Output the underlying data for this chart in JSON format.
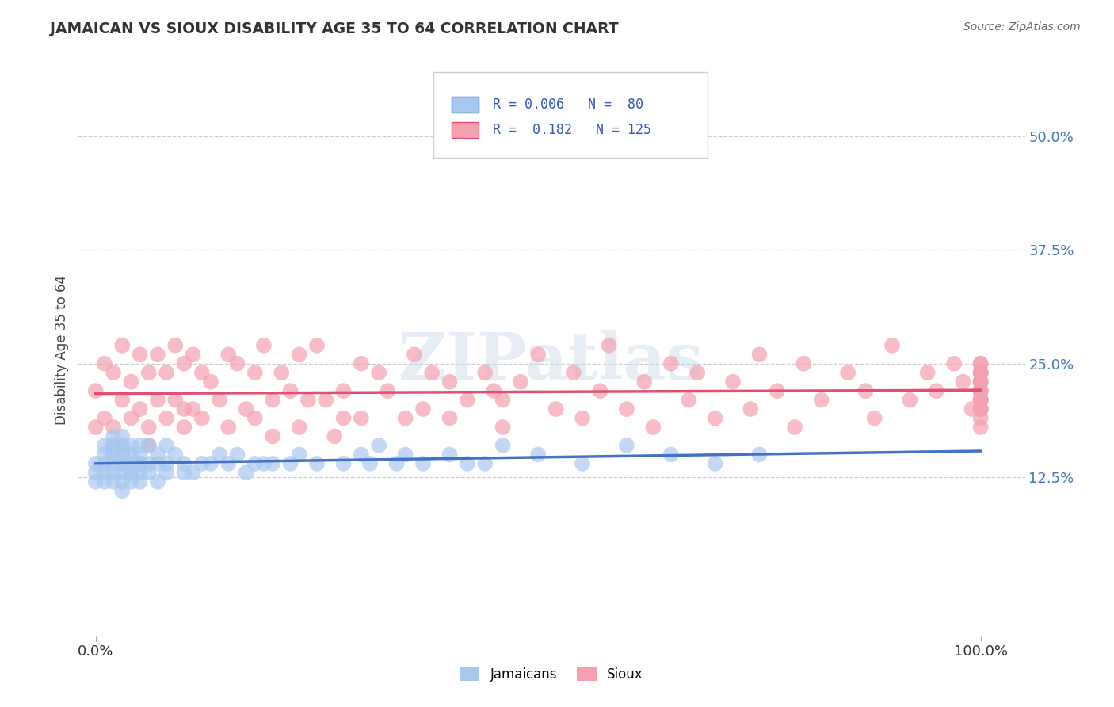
{
  "title": "JAMAICAN VS SIOUX DISABILITY AGE 35 TO 64 CORRELATION CHART",
  "source_text": "Source: ZipAtlas.com",
  "ylabel": "Disability Age 35 to 64",
  "xlim": [
    -2,
    105
  ],
  "ylim": [
    -5,
    58
  ],
  "ytick_positions": [
    12.5,
    25.0,
    37.5,
    50.0
  ],
  "ytick_labels": [
    "12.5%",
    "25.0%",
    "37.5%",
    "50.0%"
  ],
  "xtick_positions": [
    0,
    100
  ],
  "xtick_labels": [
    "0.0%",
    "100.0%"
  ],
  "legend_line1": "R = 0.006   N =  80",
  "legend_line2": "R =  0.182   N = 125",
  "color_jamaican": "#a8c8f0",
  "color_sioux": "#f5a0b0",
  "color_line_jamaican": "#4472c4",
  "color_line_sioux": "#e05070",
  "color_title": "#333333",
  "color_source": "#666666",
  "color_legend_text": "#3355bb",
  "background_color": "#ffffff",
  "grid_color": "#cccccc",
  "watermark_text": "ZIPatlas",
  "jamaican_x": [
    0,
    0,
    0,
    1,
    1,
    1,
    1,
    1,
    2,
    2,
    2,
    2,
    2,
    2,
    2,
    2,
    3,
    3,
    3,
    3,
    3,
    3,
    3,
    3,
    3,
    4,
    4,
    4,
    4,
    4,
    4,
    4,
    5,
    5,
    5,
    5,
    5,
    5,
    6,
    6,
    6,
    7,
    7,
    7,
    8,
    8,
    8,
    9,
    10,
    10,
    11,
    12,
    13,
    14,
    15,
    16,
    17,
    18,
    19,
    20,
    22,
    23,
    25,
    28,
    30,
    31,
    32,
    34,
    35,
    37,
    40,
    42,
    44,
    46,
    50,
    55,
    60,
    65,
    70,
    75
  ],
  "jamaican_y": [
    14,
    13,
    12,
    16,
    15,
    14,
    13,
    12,
    17,
    16,
    16,
    15,
    15,
    14,
    13,
    12,
    17,
    16,
    15,
    15,
    14,
    14,
    13,
    12,
    11,
    16,
    15,
    14,
    14,
    13,
    13,
    12,
    16,
    15,
    14,
    14,
    13,
    12,
    16,
    14,
    13,
    15,
    14,
    12,
    16,
    14,
    13,
    15,
    14,
    13,
    13,
    14,
    14,
    15,
    14,
    15,
    13,
    14,
    14,
    14,
    14,
    15,
    14,
    14,
    15,
    14,
    16,
    14,
    15,
    14,
    15,
    14,
    14,
    16,
    15,
    14,
    16,
    15,
    14,
    15
  ],
  "sioux_x": [
    0,
    0,
    1,
    1,
    2,
    2,
    3,
    3,
    3,
    4,
    4,
    5,
    5,
    6,
    6,
    6,
    7,
    7,
    8,
    8,
    9,
    9,
    10,
    10,
    10,
    11,
    11,
    12,
    12,
    13,
    14,
    15,
    15,
    16,
    17,
    18,
    18,
    19,
    20,
    20,
    21,
    22,
    23,
    23,
    24,
    25,
    26,
    27,
    28,
    28,
    30,
    30,
    32,
    33,
    35,
    36,
    37,
    38,
    40,
    40,
    42,
    44,
    45,
    46,
    46,
    48,
    50,
    52,
    54,
    55,
    57,
    58,
    60,
    62,
    63,
    65,
    67,
    68,
    70,
    72,
    74,
    75,
    77,
    79,
    80,
    82,
    85,
    87,
    88,
    90,
    92,
    94,
    95,
    97,
    98,
    99,
    100,
    100,
    100,
    100,
    100,
    100,
    100,
    100,
    100,
    100,
    100,
    100,
    100,
    100,
    100,
    100,
    100,
    100,
    100,
    100,
    100,
    100,
    100,
    100,
    100,
    100,
    100,
    100,
    100
  ],
  "sioux_y": [
    22,
    18,
    25,
    19,
    24,
    18,
    27,
    21,
    16,
    23,
    19,
    26,
    20,
    24,
    18,
    16,
    26,
    21,
    24,
    19,
    27,
    21,
    25,
    20,
    18,
    26,
    20,
    24,
    19,
    23,
    21,
    26,
    18,
    25,
    20,
    24,
    19,
    27,
    21,
    17,
    24,
    22,
    18,
    26,
    21,
    27,
    21,
    17,
    22,
    19,
    25,
    19,
    24,
    22,
    19,
    26,
    20,
    24,
    19,
    23,
    21,
    24,
    22,
    21,
    18,
    23,
    26,
    20,
    24,
    19,
    22,
    27,
    20,
    23,
    18,
    25,
    21,
    24,
    19,
    23,
    20,
    26,
    22,
    18,
    25,
    21,
    24,
    22,
    19,
    27,
    21,
    24,
    22,
    25,
    23,
    20,
    24,
    22,
    20,
    18,
    22,
    21,
    20,
    24,
    22,
    23,
    21,
    25,
    23,
    24,
    22,
    19,
    21,
    23,
    20,
    22,
    21,
    20,
    25,
    23,
    21,
    24,
    22,
    21,
    20
  ]
}
